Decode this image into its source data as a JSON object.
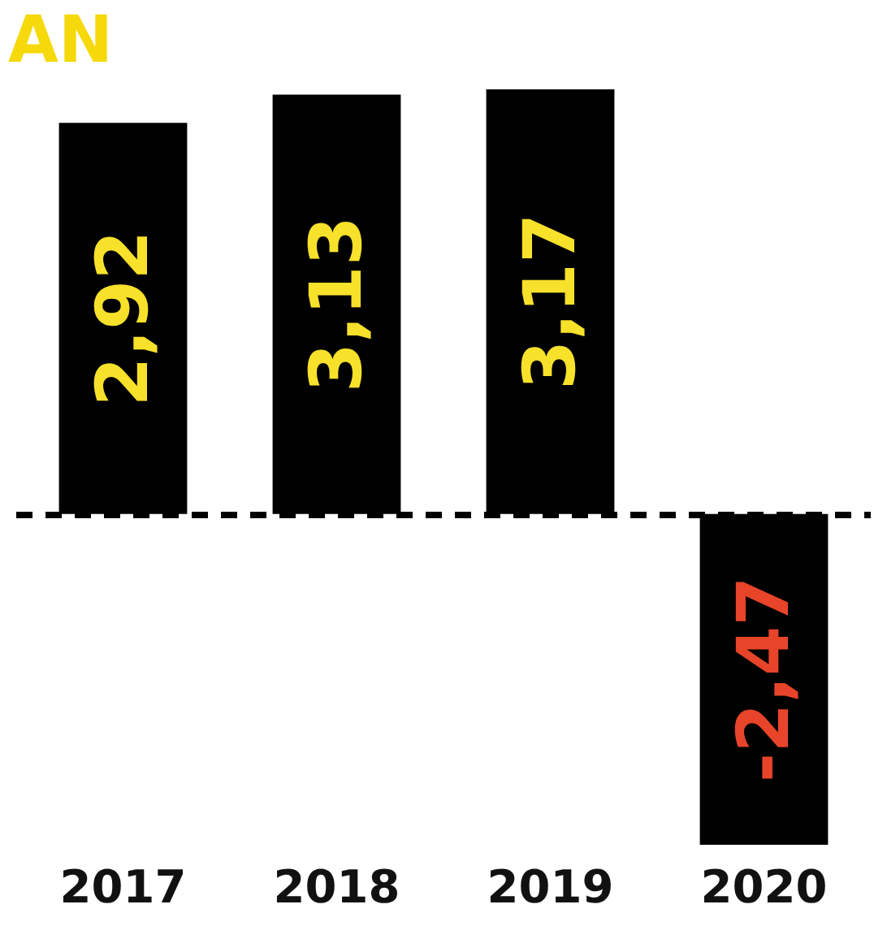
{
  "chart_data": {
    "type": "bar",
    "title": "AN",
    "categories": [
      "2017",
      "2018",
      "2019",
      "2020"
    ],
    "values": [
      2.92,
      3.13,
      3.17,
      -2.47
    ],
    "value_labels": [
      "2,92",
      "3,13",
      "3,17",
      "-2,47"
    ],
    "color": "#000000",
    "ref_lines": [
      {
        "axis": "y",
        "value": 0,
        "line_style": "dashed",
        "color": "#000000"
      }
    ],
    "grid": false
  }
}
